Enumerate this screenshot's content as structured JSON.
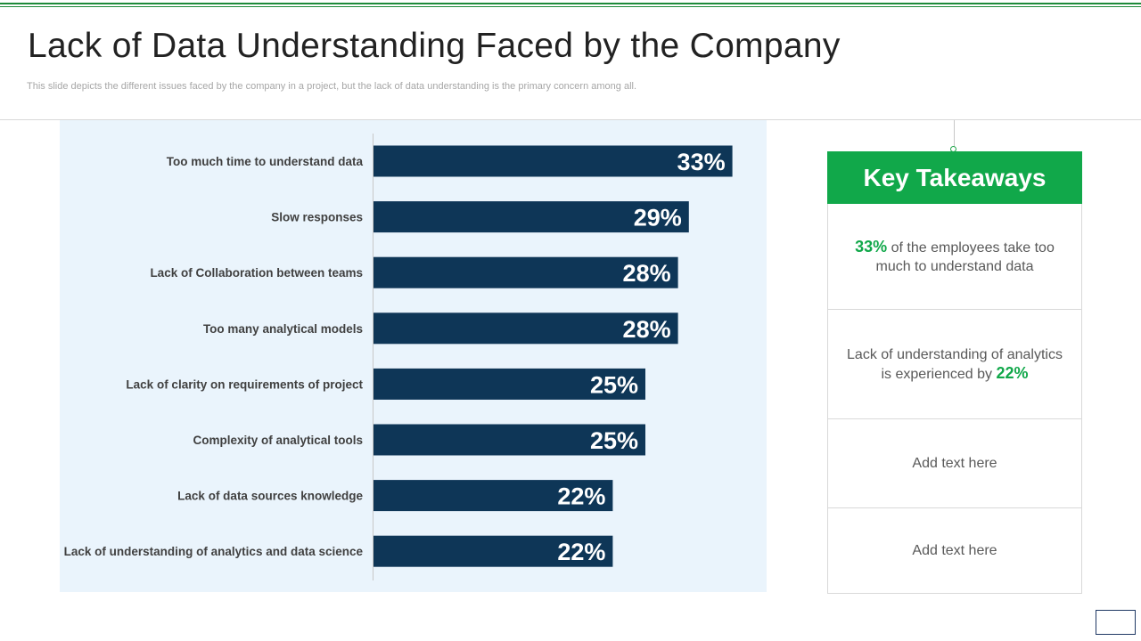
{
  "slide": {
    "title": "Lack of Data Understanding Faced by the Company",
    "subtitle": "This slide depicts the different issues faced by the company in a project, but the lack of data understanding is the primary concern among all."
  },
  "chart_data": {
    "type": "bar",
    "orientation": "horizontal",
    "categories": [
      "Too much time to understand data",
      "Slow responses",
      "Lack of Collaboration between teams",
      "Too many analytical models",
      "Lack of clarity on requirements of project",
      "Complexity of analytical tools",
      "Lack of data sources knowledge",
      "Lack of understanding of analytics and data science"
    ],
    "values": [
      33,
      29,
      28,
      28,
      25,
      25,
      22,
      22
    ],
    "value_labels": [
      "33%",
      "29%",
      "28%",
      "28%",
      "25%",
      "25%",
      "22%",
      "22%"
    ],
    "title": "",
    "xlabel": "",
    "ylabel": "",
    "unit": "%",
    "bar_color": "#0e3657",
    "background_color": "#eaf4fc",
    "grid": false,
    "legend": "none"
  },
  "takeaways": {
    "header": "Key Takeaways",
    "items": [
      {
        "highlight": "33%",
        "text": " of the employees take too much to understand data"
      },
      {
        "text": "Lack of understanding of analytics is experienced by ",
        "highlight": "22%"
      },
      {
        "text": "Add text here"
      },
      {
        "text": "Add text here"
      }
    ]
  },
  "colors": {
    "accent_green": "#11a84a",
    "bar_navy": "#0e3657",
    "rule_green": "#1e8a3a"
  }
}
